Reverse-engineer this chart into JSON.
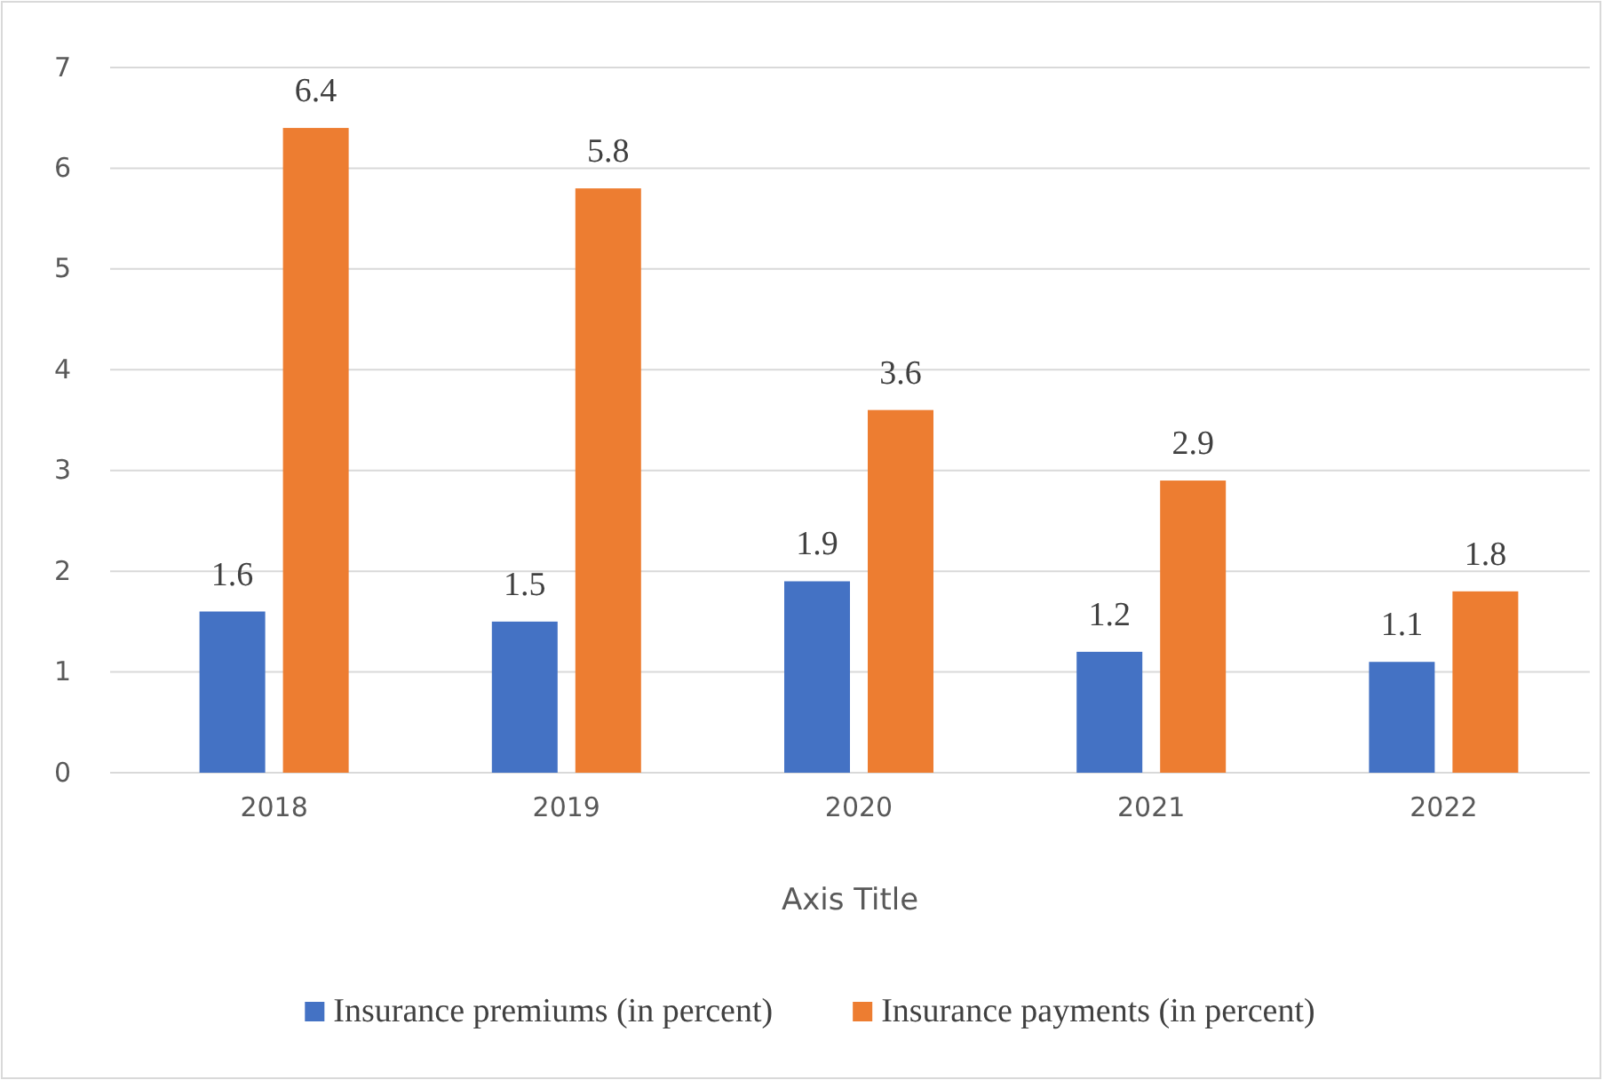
{
  "chart_data": {
    "type": "bar",
    "xlabel": "Axis Title",
    "categories": [
      "2018",
      "2019",
      "2020",
      "2021",
      "2022"
    ],
    "series": [
      {
        "name": "Insurance premiums (in percent)",
        "color": "#4472c4",
        "values": [
          1.6,
          1.5,
          1.9,
          1.2,
          1.1
        ]
      },
      {
        "name": "Insurance payments (in percent)",
        "color": "#ed7d31",
        "values": [
          6.4,
          5.8,
          3.6,
          2.9,
          1.8
        ]
      }
    ],
    "ylim": [
      0,
      7
    ],
    "yticks": [
      0,
      1,
      2,
      3,
      4,
      5,
      6,
      7
    ],
    "grid": "y",
    "legend": "bottom",
    "data_labels": true
  }
}
